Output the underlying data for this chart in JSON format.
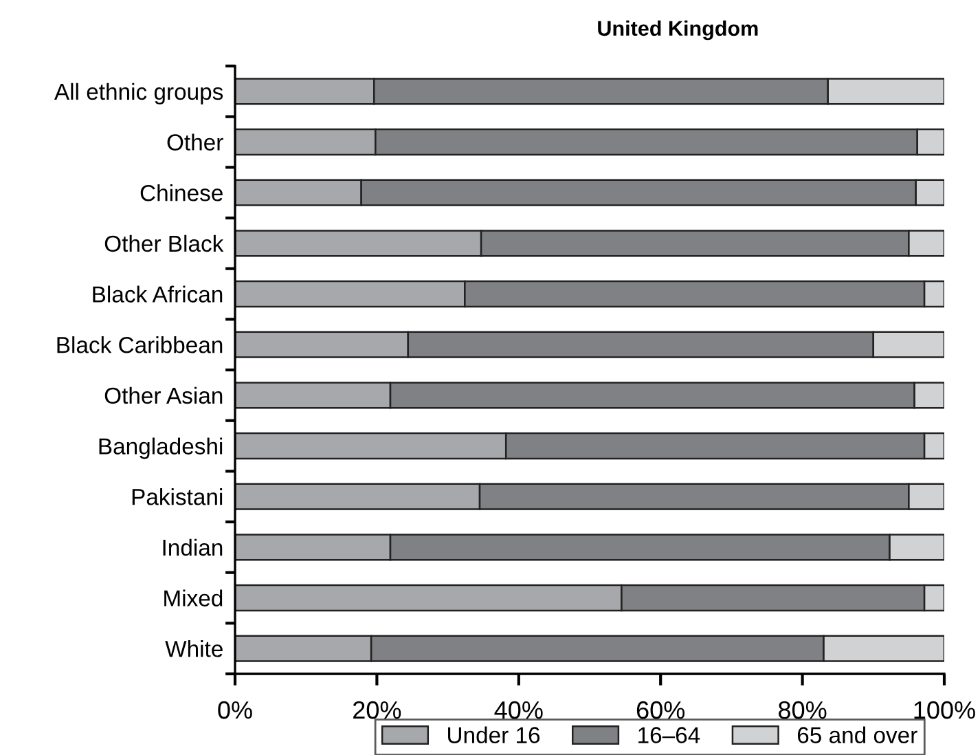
{
  "chart_data": {
    "type": "bar",
    "orientation": "horizontal",
    "stacked": true,
    "title": "United Kingdom",
    "categories": [
      "All ethnic groups",
      "Other",
      "Chinese",
      "Other Black",
      "Black African",
      "Black Caribbean",
      "Other Asian",
      "Bangladeshi",
      "Pakistani",
      "Indian",
      "Mixed",
      "White"
    ],
    "series": [
      {
        "name": "Under 16",
        "color": "#a7a8ab",
        "values": [
          19.6,
          19.8,
          17.8,
          34.7,
          32.4,
          24.4,
          21.9,
          38.2,
          34.5,
          21.9,
          54.5,
          19.2
        ]
      },
      {
        "name": "16–64",
        "color": "#808184",
        "values": [
          64.0,
          76.4,
          78.2,
          60.3,
          64.8,
          65.6,
          73.9,
          59.0,
          60.5,
          70.4,
          42.7,
          63.8
        ]
      },
      {
        "name": "65 and over",
        "color": "#d1d2d4",
        "values": [
          16.4,
          3.8,
          4.0,
          5.0,
          2.8,
          10.0,
          4.2,
          2.8,
          5.0,
          7.7,
          2.8,
          17.0
        ]
      }
    ],
    "xlim": [
      0,
      100
    ],
    "xticks": [
      {
        "value": 0,
        "label": "0%"
      },
      {
        "value": 20,
        "label": "20%"
      },
      {
        "value": 40,
        "label": "40%"
      },
      {
        "value": 60,
        "label": "60%"
      },
      {
        "value": 80,
        "label": "80%"
      },
      {
        "value": 100,
        "label": "100%"
      }
    ],
    "grid": false,
    "legend": "bottom"
  }
}
